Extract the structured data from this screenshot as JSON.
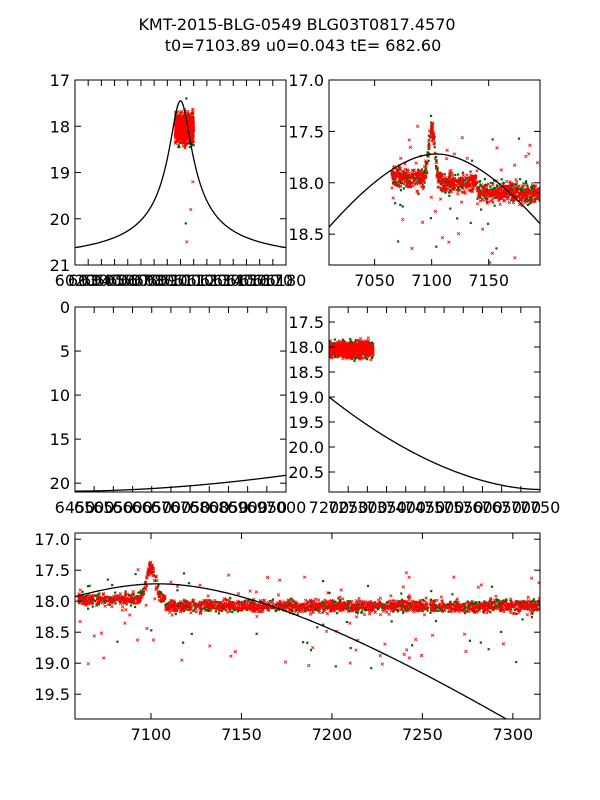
{
  "title": {
    "line1": "KMT-2015-BLG-0549 BLG03T0817.4570",
    "line2": "t0=7103.89 u0=0.043 tE= 682.60"
  },
  "colors": {
    "model": "#000000",
    "green_points": "#006400",
    "red_points": "#ff0000",
    "axes": "#000000"
  },
  "chart_data": [
    {
      "id": "top-left",
      "type": "scatter",
      "xlim": [
        6020,
        6180
      ],
      "ylim": [
        17,
        21
      ],
      "y_inverted": true,
      "yticks": [
        17,
        18,
        19,
        20,
        21
      ],
      "ytick_labels": [
        "17",
        "18",
        "19",
        "20",
        "21"
      ],
      "xticks": [
        6020,
        6030,
        6040,
        6050,
        6060,
        6070,
        6080,
        6090,
        6100,
        6110,
        6120,
        6130,
        6140,
        6150,
        6160,
        6170,
        6180
      ],
      "xtick_labels": [
        "6020",
        "6030",
        "6040",
        "6050",
        "6060",
        "6070",
        "6080",
        "6090",
        "6100",
        "6110",
        "6120",
        "6130",
        "6140",
        "6150",
        "6160",
        "6170",
        "6180"
      ],
      "model": {
        "peak_x": 6100,
        "peak_y": 17.45,
        "base_y": 21,
        "width": 8.5
      },
      "data_cluster": {
        "x_range": [
          6096,
          6110
        ],
        "y_center": 18.05,
        "y_spread": 0.3,
        "outliers_y": [
          17.4,
          19.2,
          19.8,
          20.1,
          20.5
        ]
      }
    },
    {
      "id": "top-right",
      "type": "scatter",
      "xlim": [
        7010,
        7195
      ],
      "ylim": [
        17.0,
        18.8
      ],
      "y_inverted": true,
      "yticks": [
        17.0,
        17.5,
        18.0,
        18.5
      ],
      "ytick_labels": [
        "17.0",
        "17.5",
        "18.0",
        "18.5"
      ],
      "xticks": [
        7050,
        7100,
        7150
      ],
      "xtick_labels": [
        "7050",
        "7100",
        "7150"
      ],
      "model": {
        "t0": 7103.89,
        "peak_y": 17.72,
        "base_y": 18.85,
        "width": 60
      },
      "data_series": [
        {
          "name": "baseline-1",
          "x_range": [
            7065,
            7092
          ],
          "y": 17.95
        },
        {
          "name": "bump",
          "x_range": [
            7092,
            7108
          ],
          "peak_x": 7100,
          "peak_y": 17.45,
          "base": 17.95
        },
        {
          "name": "baseline-2",
          "x_range": [
            7108,
            7140
          ],
          "y": 18.0
        },
        {
          "name": "baseline-3",
          "x_range": [
            7140,
            7195
          ],
          "y": 18.1
        }
      ]
    },
    {
      "id": "middle-left",
      "type": "scatter",
      "xlim": [
        6450,
        7000
      ],
      "ylim": [
        0,
        21
      ],
      "y_inverted": true,
      "yticks": [
        0,
        5,
        10,
        15,
        20
      ],
      "ytick_labels": [
        "0",
        "5",
        "10",
        "15",
        "20"
      ],
      "xticks": [
        6450,
        6500,
        6550,
        6600,
        6650,
        6700,
        6750,
        6800,
        6850,
        6900,
        6950,
        7000
      ],
      "xtick_labels": [
        "6450",
        "6500",
        "6550",
        "6600",
        "6650",
        "6700",
        "6750",
        "6800",
        "6850",
        "6900",
        "6950",
        "7000"
      ],
      "model": {
        "start_y": 20.9,
        "end_y": 19.1
      }
    },
    {
      "id": "middle-right",
      "type": "scatter",
      "xlim": [
        7200,
        7750
      ],
      "ylim": [
        17.2,
        20.9
      ],
      "y_inverted": true,
      "yticks": [
        17.5,
        18.0,
        18.5,
        19.0,
        19.5,
        20.0,
        20.5
      ],
      "ytick_labels": [
        "17.5",
        "18.0",
        "18.5",
        "19.0",
        "19.5",
        "20.0",
        "20.5"
      ],
      "xticks": [
        7200,
        7250,
        7300,
        7350,
        7400,
        7450,
        7500,
        7550,
        7600,
        7650,
        7700,
        7750
      ],
      "xtick_labels": [
        "7200",
        "7250",
        "7300",
        "7350",
        "7400",
        "7450",
        "7500",
        "7550",
        "7600",
        "7650",
        "7700",
        "7750"
      ],
      "model": {
        "start_y": 19.0,
        "end_y": 20.85
      },
      "data_cluster": {
        "x_range": [
          7200,
          7315
        ],
        "y_center": 18.05,
        "y_spread": 0.15
      }
    },
    {
      "id": "bottom",
      "type": "scatter",
      "xlim": [
        7058,
        7315
      ],
      "ylim": [
        16.9,
        19.9
      ],
      "y_inverted": true,
      "yticks": [
        17.0,
        17.5,
        18.0,
        18.5,
        19.0,
        19.5
      ],
      "ytick_labels": [
        "17.0",
        "17.5",
        "18.0",
        "18.5",
        "19.0",
        "19.5"
      ],
      "xticks": [
        7100,
        7150,
        7200,
        7250,
        7300
      ],
      "xtick_labels": [
        "7100",
        "7150",
        "7200",
        "7250",
        "7300"
      ],
      "model": {
        "t0": 7103.89,
        "peak_y": 17.72,
        "width": 60
      },
      "data_series": [
        {
          "name": "baseline-1",
          "x_range": [
            7060,
            7092
          ],
          "y": 17.97
        },
        {
          "name": "bump",
          "x_range": [
            7092,
            7108
          ],
          "peak_x": 7100,
          "peak_y": 17.45,
          "base": 17.97
        },
        {
          "name": "baseline-2",
          "x_range": [
            7108,
            7315
          ],
          "y": 18.08
        }
      ]
    }
  ]
}
